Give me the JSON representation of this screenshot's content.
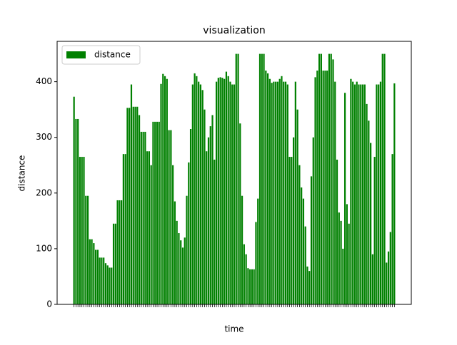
{
  "chart_data": {
    "type": "bar",
    "title": "visualization",
    "x_label": "time",
    "y_label": "distance",
    "categories": [
      null,
      null,
      null,
      null,
      null,
      null,
      null,
      null,
      null,
      null,
      null,
      null,
      null,
      null,
      null,
      null,
      null,
      null,
      null,
      null,
      null,
      null,
      null,
      null,
      null,
      null,
      null,
      null,
      null,
      null,
      null,
      null,
      null,
      null,
      null,
      null,
      null,
      null,
      null,
      null,
      null,
      null,
      null,
      null,
      null,
      null,
      null,
      null,
      null,
      null,
      null,
      null,
      null,
      null,
      null,
      null,
      null,
      null,
      null,
      null,
      null,
      null,
      null,
      null,
      null,
      null,
      null,
      null,
      null,
      null,
      null,
      null,
      null,
      null,
      null,
      null,
      null,
      null,
      null,
      null,
      null,
      null,
      null,
      null,
      null,
      null,
      null,
      null,
      null,
      null,
      null,
      null,
      null,
      null,
      null,
      null,
      null,
      null,
      null,
      null,
      null,
      null,
      null,
      null,
      null,
      null,
      null,
      null,
      null,
      null,
      null,
      null,
      null,
      null,
      null,
      null,
      null,
      null,
      null,
      null,
      null,
      null,
      null,
      null,
      null,
      null,
      null,
      null,
      null,
      null,
      null,
      null,
      null,
      null,
      null,
      null,
      null,
      null,
      null,
      null,
      null,
      null,
      null,
      null,
      null,
      null,
      null,
      null,
      null,
      null,
      null,
      null,
      null,
      null,
      null,
      null,
      null,
      null,
      null,
      null,
      null,
      null,
      null
    ],
    "series": [
      {
        "name": "distance",
        "color": "#008000",
        "values": [
          373,
          333,
          333,
          265,
          265,
          265,
          195,
          195,
          117,
          117,
          110,
          98,
          98,
          84,
          84,
          84,
          74,
          70,
          66,
          66,
          145,
          145,
          187,
          187,
          187,
          270,
          270,
          353,
          353,
          395,
          355,
          355,
          355,
          340,
          310,
          310,
          310,
          275,
          275,
          250,
          328,
          328,
          328,
          328,
          396,
          414,
          410,
          405,
          313,
          313,
          250,
          185,
          150,
          128,
          115,
          102,
          120,
          195,
          255,
          315,
          395,
          415,
          410,
          400,
          395,
          385,
          350,
          275,
          300,
          320,
          340,
          260,
          400,
          407,
          408,
          407,
          405,
          418,
          410,
          400,
          395,
          395,
          450,
          450,
          325,
          195,
          108,
          90,
          65,
          63,
          63,
          63,
          148,
          190,
          450,
          450,
          450,
          420,
          415,
          405,
          398,
          400,
          400,
          400,
          405,
          410,
          400,
          400,
          395,
          265,
          265,
          300,
          400,
          350,
          250,
          210,
          190,
          140,
          68,
          60,
          230,
          300,
          408,
          420,
          450,
          450,
          420,
          420,
          420,
          450,
          450,
          440,
          400,
          260,
          165,
          150,
          100,
          380,
          180,
          145,
          405,
          400,
          395,
          400,
          395,
          395,
          395,
          395,
          360,
          330,
          290,
          90,
          265,
          395,
          395,
          400,
          450,
          450,
          75,
          95,
          130,
          270,
          397
        ]
      }
    ],
    "ylim": [
      0,
      472.5
    ],
    "yticks": [
      0,
      100,
      200,
      300,
      400
    ],
    "legend": "upper left"
  }
}
